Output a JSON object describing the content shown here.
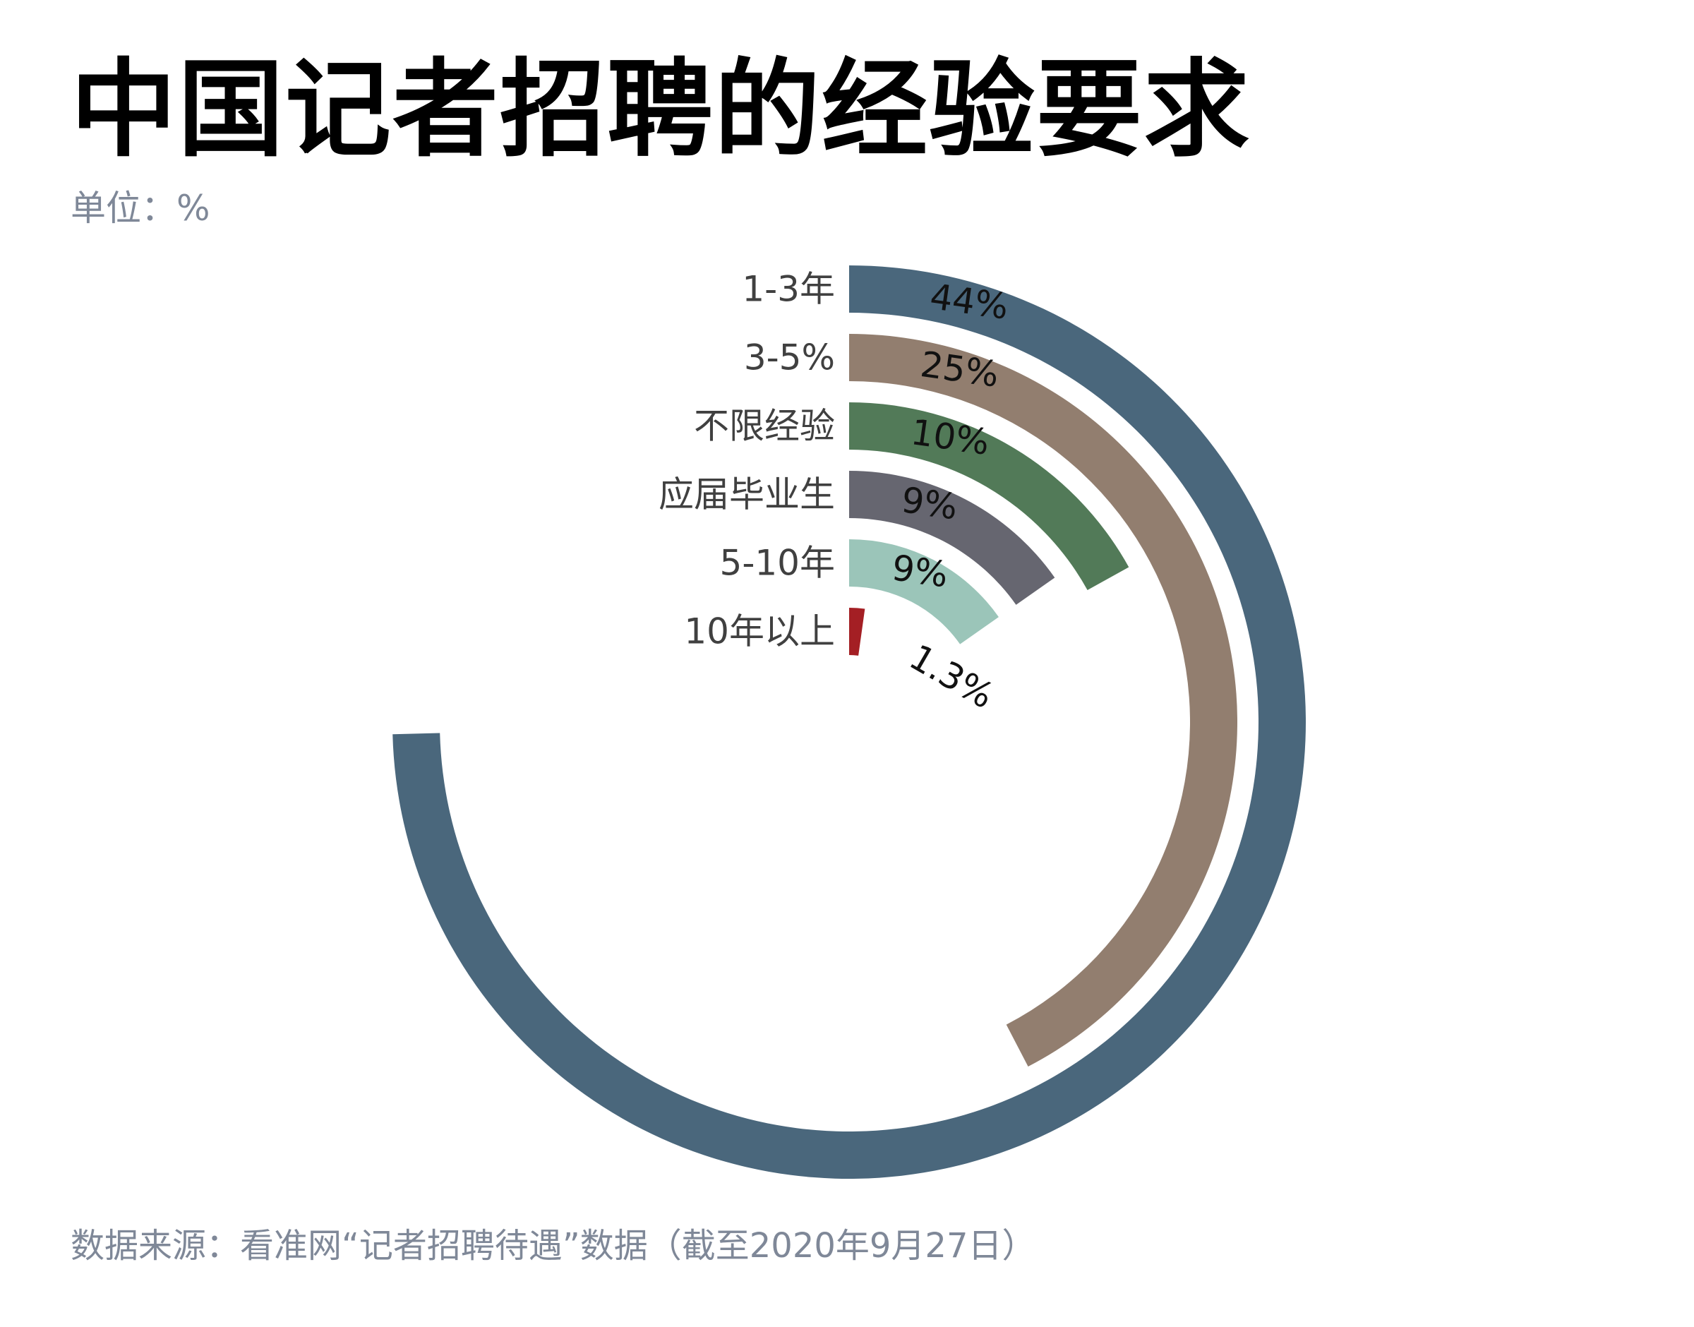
{
  "header": {
    "title": "中国记者招聘的经验要求",
    "unit": "单位：%"
  },
  "footer": {
    "source": "数据来源：看准网“记者招聘待遇”数据（截至2020年9月27日）"
  },
  "chart_data": {
    "type": "radial bar",
    "title": "中国记者招聘的经验要求",
    "unit": "%",
    "categories": [
      "1-3年",
      "3-5%",
      "不限经验",
      "应届毕业生",
      "5-10年",
      "10年以上"
    ],
    "values": [
      44,
      25,
      10,
      9,
      9,
      1.3
    ],
    "value_labels": [
      "44%",
      "25%",
      "10%",
      "9%",
      "9%",
      "1.3%"
    ],
    "max_value": 59,
    "colors": [
      "#4a677c",
      "#927e6f",
      "#527a58",
      "#666670",
      "#9bc5b9",
      "#a41f24"
    ]
  }
}
